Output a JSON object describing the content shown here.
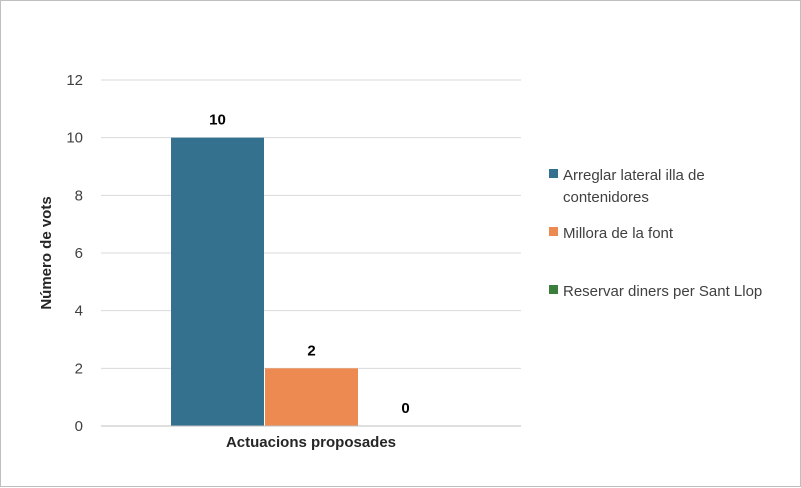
{
  "chart_data": {
    "type": "bar",
    "title": "",
    "xlabel": "Actuacions proposades",
    "ylabel": "Número de vots",
    "ylim": [
      0,
      12
    ],
    "yticks": [
      0,
      2,
      4,
      6,
      8,
      10,
      12
    ],
    "grid": true,
    "legend_position": "right",
    "series": [
      {
        "name": "Arreglar lateral illa de contenidors",
        "legend_lines": [
          "Arreglar lateral illa de",
          "contenidores"
        ],
        "value": 10,
        "color": "#33718f"
      },
      {
        "name": "Millora de la font",
        "legend_lines": [
          "Millora de la font"
        ],
        "value": 2,
        "color": "#ec8a52"
      },
      {
        "name": "Reservar diners per Sant Llop",
        "legend_lines": [
          "Reservar diners per Sant Llop"
        ],
        "value": 0,
        "color": "#3b7d3b"
      }
    ]
  }
}
